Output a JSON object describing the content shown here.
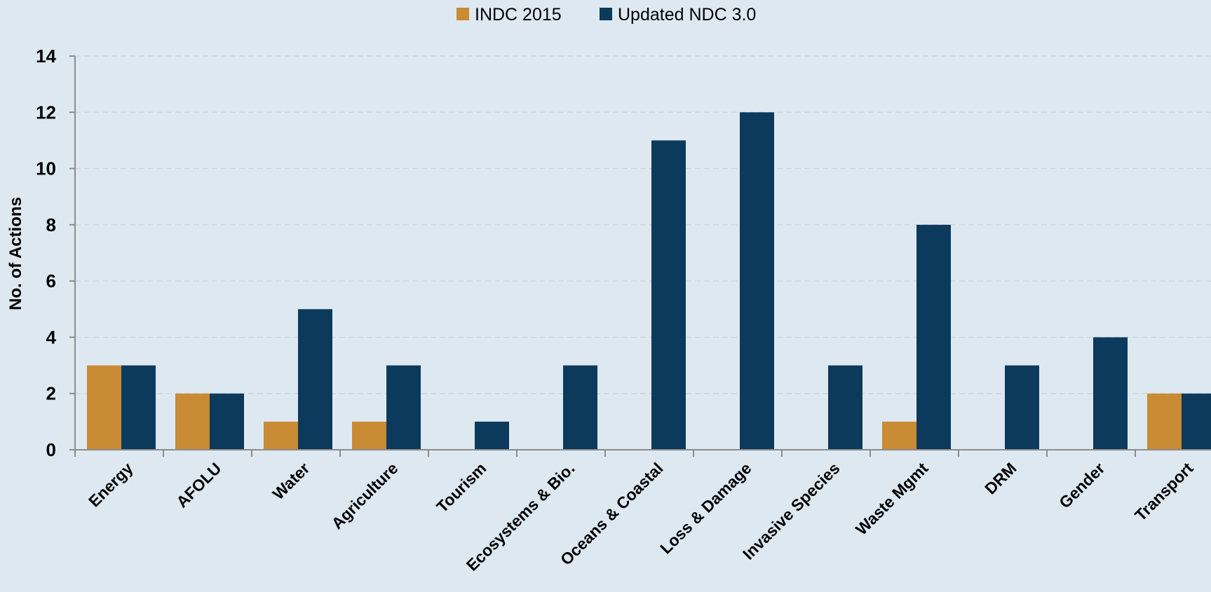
{
  "chart_data": {
    "type": "bar",
    "title": "",
    "xlabel": "",
    "ylabel": "No. of Actions",
    "ylim": [
      0,
      14
    ],
    "yticks": [
      0,
      2,
      4,
      6,
      8,
      10,
      12,
      14
    ],
    "grid": true,
    "legend_position": "top-center",
    "categories": [
      "Energy",
      "AFOLU",
      "Water",
      "Agriculture",
      "Tourism",
      "Ecosystems & Bio.",
      "Oceans & Coastal",
      "Loss & Damage",
      "Invasive Species",
      "Waste Mgmt",
      "DRM",
      "Gender",
      "Transport"
    ],
    "series": [
      {
        "name": "INDC 2015",
        "color": "#c98b34",
        "values": [
          3,
          2,
          1,
          1,
          0,
          0,
          0,
          0,
          0,
          1,
          0,
          0,
          2
        ]
      },
      {
        "name": "Updated NDC 3.0",
        "color": "#0b3a5c",
        "values": [
          3,
          2,
          5,
          3,
          1,
          3,
          11,
          12,
          3,
          8,
          3,
          4,
          2
        ]
      }
    ]
  }
}
